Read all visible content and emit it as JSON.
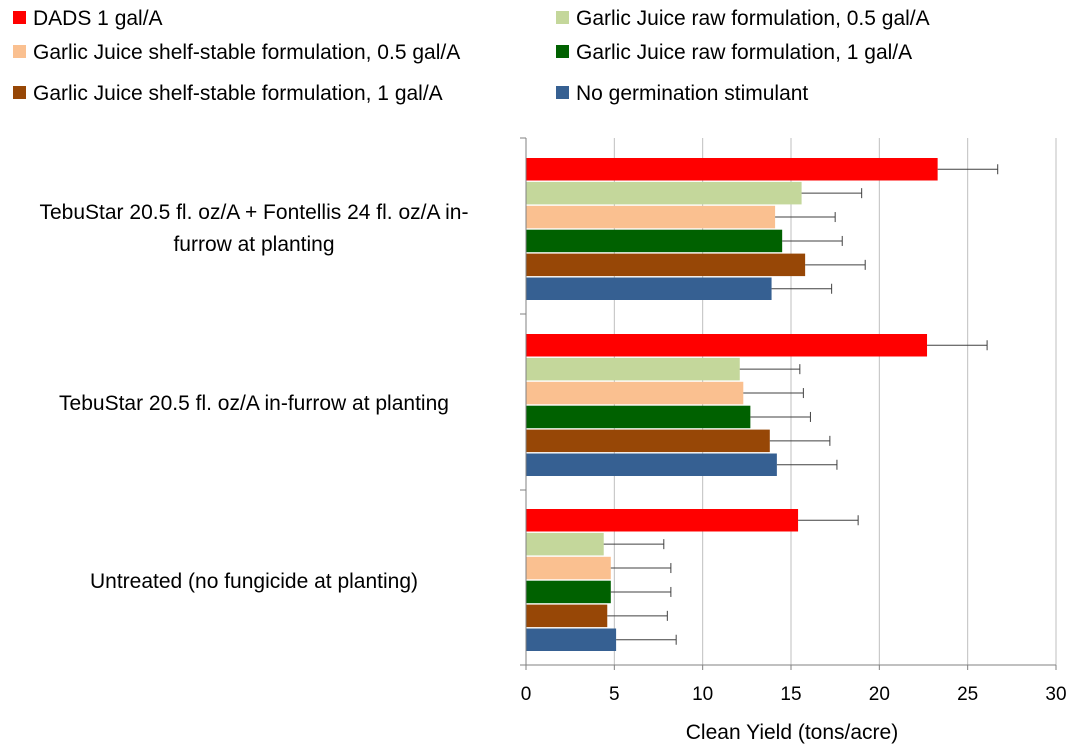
{
  "chart_data": {
    "type": "bar",
    "orientation": "horizontal",
    "categories": [
      [
        "TebuStar 20.5 fl. oz/A + Fontellis 24 fl. oz/A in-",
        "furrow at planting"
      ],
      [
        "TebuStar 20.5 fl. oz/A in-furrow at planting"
      ],
      [
        "Untreated (no fungicide at planting)"
      ]
    ],
    "series": [
      {
        "name": "DADS 1 gal/A",
        "color": "#ff0000",
        "values": [
          23.3,
          22.7,
          15.4
        ],
        "errors": [
          3.4,
          3.4,
          3.4
        ]
      },
      {
        "name": "Garlic Juice raw formulation, 0.5 gal/A",
        "color": "#c4d79b",
        "values": [
          15.6,
          12.1,
          4.4
        ],
        "errors": [
          3.4,
          3.4,
          3.4
        ]
      },
      {
        "name": "Garlic Juice shelf-stable formulation, 0.5 gal/A",
        "color": "#fac090",
        "values": [
          14.1,
          12.3,
          4.8
        ],
        "errors": [
          3.4,
          3.4,
          3.4
        ]
      },
      {
        "name": "Garlic Juice raw formulation, 1 gal/A",
        "color": "#006100",
        "values": [
          14.5,
          12.7,
          4.8
        ],
        "errors": [
          3.4,
          3.4,
          3.4
        ]
      },
      {
        "name": "Garlic Juice shelf-stable formulation, 1 gal/A",
        "color": "#974706",
        "values": [
          15.8,
          13.8,
          4.6
        ],
        "errors": [
          3.4,
          3.4,
          3.4
        ]
      },
      {
        "name": "No germination stimulant",
        "color": "#366092",
        "values": [
          13.9,
          14.2,
          5.1
        ],
        "errors": [
          3.4,
          3.4,
          3.4
        ]
      }
    ],
    "xlabel": "Clean Yield (tons/acre)",
    "xlim": [
      0,
      30
    ],
    "xticks": [
      "0",
      "5",
      "10",
      "15",
      "20",
      "25",
      "30"
    ],
    "gridlines": "vertical",
    "legend_position": "top",
    "legend_order": [
      0,
      1,
      2,
      3,
      4,
      5
    ]
  }
}
